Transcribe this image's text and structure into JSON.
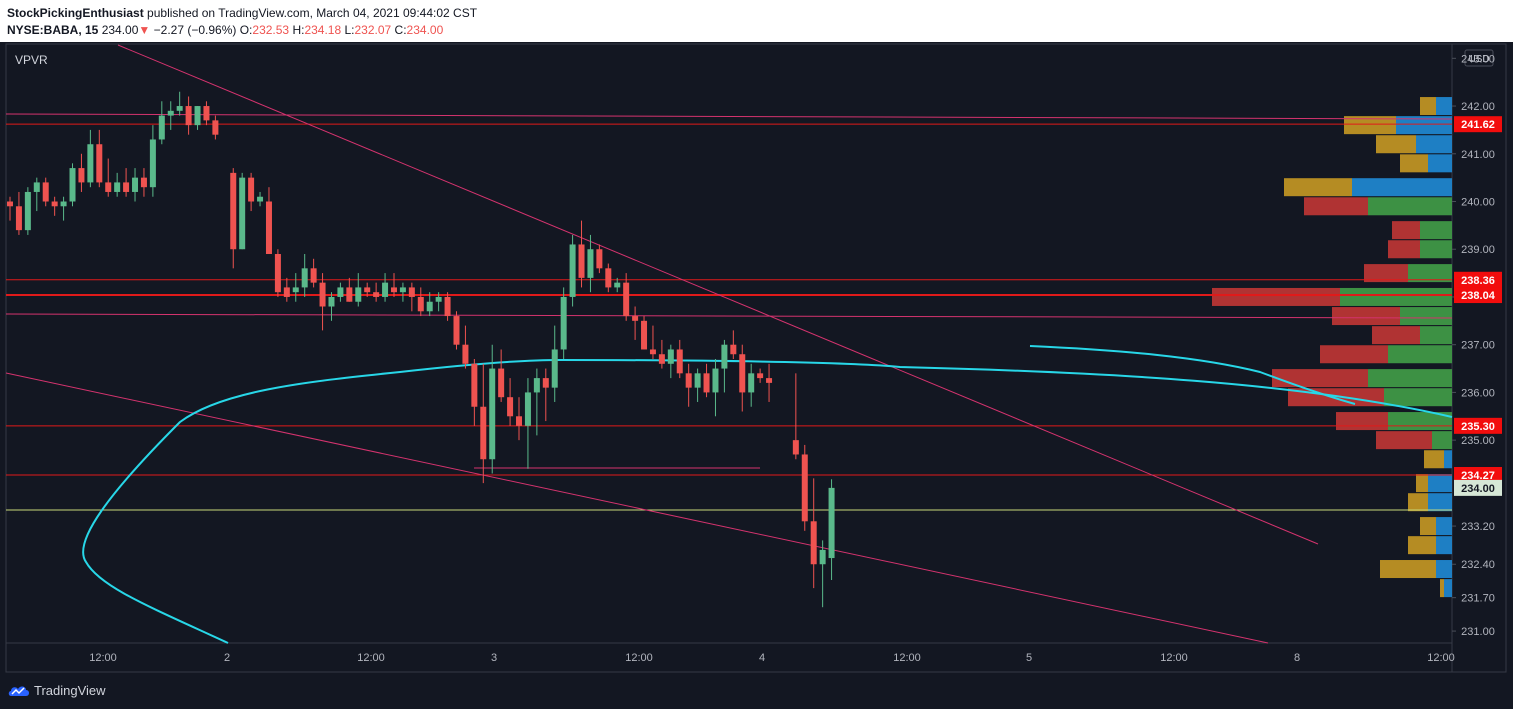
{
  "header": {
    "publisher": "StockPickingEnthusiast",
    "published_text": "published on TradingView.com, March 04, 2021 09:44:02 CST",
    "symbol": "NYSE:BABA, 15",
    "last": "234.00",
    "change_arrow": "▼",
    "change": "−2.27 (−0.96%)",
    "o_label": "O:",
    "o": "232.53",
    "h_label": "H:",
    "h": "234.18",
    "l_label": "L:",
    "l": "232.07",
    "c_label": "C:",
    "c": "234.00"
  },
  "indicator_label": "VPVR",
  "currency": "USD",
  "footer": {
    "brand": "TradingView"
  },
  "colors": {
    "background": "#131722",
    "up": "#5ab98b",
    "down": "#ef5350",
    "vwap": "#28d7e8",
    "trendline": "#d4336e",
    "level": "#e01a1a",
    "current_price_line": "#c8d97a",
    "vp_up": "#3d9144",
    "vp_down": "#b03333",
    "vp_va_up": "#1e7fc4",
    "vp_va_down": "#b58c23"
  },
  "chart_data": {
    "type": "candlestick",
    "symbol": "NYSE:BABA",
    "interval": "15",
    "ylim": [
      230.75,
      243.3
    ],
    "y_ticks": [
      "243.00",
      "242.00",
      "241.00",
      "240.00",
      "239.00",
      "238.00",
      "237.00",
      "236.00",
      "235.00",
      "233.20",
      "232.40",
      "231.70",
      "231.00"
    ],
    "x_ticks": [
      "12:00",
      "2",
      "12:00",
      "3",
      "12:00",
      "4",
      "12:00",
      "5",
      "12:00",
      "8",
      "12:00"
    ],
    "price_labels": [
      {
        "value": 241.62,
        "text": "241.62",
        "kind": "level"
      },
      {
        "value": 238.36,
        "text": "238.36",
        "kind": "level"
      },
      {
        "value": 238.04,
        "text": "238.04",
        "kind": "level"
      },
      {
        "value": 235.3,
        "text": "235.30",
        "kind": "level"
      },
      {
        "value": 234.27,
        "text": "234.27",
        "kind": "level"
      },
      {
        "value": 234.0,
        "text": "234.00",
        "kind": "last"
      }
    ],
    "horizontal_levels": [
      241.62,
      238.36,
      238.04,
      235.3,
      234.27
    ],
    "current_price": 234.0,
    "lines_description_values": {
      "upper_channel": [
        242.1,
        242.0
      ],
      "mid_channel": [
        237.58,
        237.55
      ]
    },
    "candles": [
      [
        240.0,
        240.1,
        239.6,
        239.9
      ],
      [
        239.9,
        240.2,
        239.3,
        239.4
      ],
      [
        239.4,
        240.3,
        239.3,
        240.2
      ],
      [
        240.2,
        240.5,
        239.8,
        240.4
      ],
      [
        240.4,
        240.5,
        239.9,
        240.0
      ],
      [
        240.0,
        240.1,
        239.7,
        239.9
      ],
      [
        239.9,
        240.1,
        239.6,
        240.0
      ],
      [
        240.0,
        240.8,
        239.9,
        240.7
      ],
      [
        240.7,
        241.0,
        240.2,
        240.4
      ],
      [
        240.4,
        241.5,
        240.3,
        241.2
      ],
      [
        241.2,
        241.5,
        240.3,
        240.4
      ],
      [
        240.4,
        240.9,
        240.1,
        240.2
      ],
      [
        240.2,
        240.6,
        240.1,
        240.4
      ],
      [
        240.4,
        240.7,
        240.1,
        240.2
      ],
      [
        240.2,
        240.7,
        240.0,
        240.5
      ],
      [
        240.5,
        240.7,
        240.1,
        240.3
      ],
      [
        240.3,
        241.6,
        240.1,
        241.3
      ],
      [
        241.3,
        242.1,
        241.2,
        241.8
      ],
      [
        241.8,
        242.1,
        241.5,
        241.9
      ],
      [
        241.9,
        242.3,
        241.8,
        242.0
      ],
      [
        242.0,
        242.2,
        241.4,
        241.6
      ],
      [
        241.6,
        242.0,
        241.5,
        242.0
      ],
      [
        242.0,
        242.1,
        241.6,
        241.7
      ],
      [
        241.7,
        241.8,
        241.3,
        241.4
      ],
      [
        240.6,
        240.7,
        238.6,
        239.0
      ],
      [
        239.0,
        240.6,
        239.0,
        240.5
      ],
      [
        240.5,
        240.6,
        239.8,
        240.0
      ],
      [
        240.0,
        240.2,
        239.9,
        240.1
      ],
      [
        240.0,
        240.3,
        238.9,
        238.9
      ],
      [
        238.9,
        239.0,
        238.0,
        238.1
      ],
      [
        238.2,
        238.4,
        237.9,
        238.0
      ],
      [
        238.1,
        238.5,
        237.9,
        238.2
      ],
      [
        238.2,
        238.9,
        238.0,
        238.6
      ],
      [
        238.6,
        238.8,
        238.2,
        238.3
      ],
      [
        238.3,
        238.5,
        237.3,
        237.8
      ],
      [
        237.8,
        238.1,
        237.5,
        238.0
      ],
      [
        238.0,
        238.3,
        237.9,
        238.2
      ],
      [
        238.2,
        238.4,
        237.9,
        237.9
      ],
      [
        237.9,
        238.5,
        237.8,
        238.2
      ],
      [
        238.2,
        238.3,
        238.0,
        238.1
      ],
      [
        238.1,
        238.3,
        237.9,
        238.0
      ],
      [
        238.0,
        238.5,
        237.9,
        238.3
      ],
      [
        238.2,
        238.5,
        238.0,
        238.1
      ],
      [
        238.1,
        238.3,
        237.9,
        238.2
      ],
      [
        238.2,
        238.3,
        237.7,
        238.0
      ],
      [
        238.0,
        238.2,
        237.6,
        237.7
      ],
      [
        237.7,
        238.1,
        237.6,
        237.9
      ],
      [
        237.9,
        238.1,
        237.7,
        238.0
      ],
      [
        238.0,
        238.1,
        237.5,
        237.6
      ],
      [
        237.6,
        237.7,
        236.9,
        237.0
      ],
      [
        237.0,
        237.4,
        236.5,
        236.6
      ],
      [
        236.6,
        236.7,
        235.3,
        235.7
      ],
      [
        235.7,
        236.6,
        234.1,
        234.6
      ],
      [
        234.6,
        237.0,
        234.3,
        236.5
      ],
      [
        236.5,
        236.9,
        235.8,
        235.9
      ],
      [
        235.9,
        236.3,
        235.3,
        235.5
      ],
      [
        235.5,
        235.9,
        235.0,
        235.3
      ],
      [
        235.3,
        236.3,
        234.4,
        236.0
      ],
      [
        236.0,
        236.5,
        235.1,
        236.3
      ],
      [
        236.3,
        236.5,
        235.4,
        236.1
      ],
      [
        236.1,
        237.4,
        235.8,
        236.9
      ],
      [
        236.9,
        238.2,
        236.7,
        238.0
      ],
      [
        238.0,
        239.3,
        237.8,
        239.1
      ],
      [
        239.1,
        239.6,
        238.2,
        238.4
      ],
      [
        238.4,
        239.3,
        238.1,
        239.0
      ],
      [
        239.0,
        239.1,
        238.5,
        238.6
      ],
      [
        238.6,
        238.7,
        238.1,
        238.2
      ],
      [
        238.2,
        238.4,
        238.1,
        238.3
      ],
      [
        238.3,
        238.5,
        237.5,
        237.6
      ],
      [
        237.6,
        237.8,
        237.1,
        237.5
      ],
      [
        237.5,
        237.6,
        236.9,
        236.9
      ],
      [
        236.9,
        237.4,
        236.7,
        236.8
      ],
      [
        236.8,
        237.1,
        236.5,
        236.6
      ],
      [
        236.6,
        237.0,
        236.3,
        236.9
      ],
      [
        236.9,
        237.1,
        236.3,
        236.4
      ],
      [
        236.4,
        236.6,
        235.7,
        236.1
      ],
      [
        236.1,
        236.5,
        235.8,
        236.4
      ],
      [
        236.4,
        236.6,
        235.9,
        236.0
      ],
      [
        236.0,
        236.7,
        235.5,
        236.5
      ],
      [
        236.5,
        237.1,
        236.0,
        237.0
      ],
      [
        237.0,
        237.3,
        236.7,
        236.8
      ],
      [
        236.8,
        237.0,
        235.6,
        236.0
      ],
      [
        236.0,
        236.6,
        235.7,
        236.4
      ],
      [
        236.4,
        236.5,
        236.2,
        236.3
      ],
      [
        236.3,
        236.6,
        235.8,
        236.2
      ],
      [
        235.0,
        236.4,
        234.6,
        234.7
      ],
      [
        234.7,
        234.9,
        233.1,
        233.3
      ],
      [
        233.3,
        234.2,
        231.9,
        232.4
      ],
      [
        232.4,
        232.9,
        231.5,
        232.7
      ],
      [
        232.53,
        234.18,
        232.07,
        234.0
      ]
    ],
    "candle_slots": [
      0,
      1,
      2,
      3,
      4,
      5,
      6,
      7,
      8,
      9,
      10,
      11,
      12,
      13,
      14,
      15,
      16,
      17,
      18,
      19,
      20,
      21,
      22,
      23,
      25,
      26,
      27,
      28,
      29,
      30,
      31,
      32,
      33,
      34,
      35,
      36,
      37,
      38,
      39,
      40,
      41,
      42,
      43,
      44,
      45,
      46,
      47,
      48,
      49,
      50,
      51,
      52,
      53,
      54,
      55,
      56,
      57,
      58,
      59,
      60,
      61,
      62,
      63,
      64,
      65,
      66,
      67,
      68,
      69,
      70,
      71,
      72,
      73,
      74,
      75,
      76,
      77,
      78,
      79,
      80,
      81,
      82,
      83,
      84,
      85,
      88,
      89,
      90,
      91,
      92
    ],
    "volume_profile": [
      {
        "price": 242.0,
        "up": 4,
        "down": 4,
        "value_area": true
      },
      {
        "price": 241.6,
        "up": 14,
        "down": 13,
        "value_area": true
      },
      {
        "price": 241.2,
        "up": 9,
        "down": 10,
        "value_area": true
      },
      {
        "price": 240.8,
        "up": 6,
        "down": 7,
        "value_area": true
      },
      {
        "price": 240.3,
        "up": 25,
        "down": 17,
        "value_area": true
      },
      {
        "price": 239.9,
        "up": 21,
        "down": 16,
        "value_area": false
      },
      {
        "price": 239.4,
        "up": 8,
        "down": 7,
        "value_area": false
      },
      {
        "price": 239.0,
        "up": 8,
        "down": 8,
        "value_area": false
      },
      {
        "price": 238.5,
        "up": 11,
        "down": 11,
        "value_area": false
      },
      {
        "price": 238.0,
        "up": 28,
        "down": 32,
        "value_area": false
      },
      {
        "price": 237.6,
        "up": 13,
        "down": 17,
        "value_area": false
      },
      {
        "price": 237.2,
        "up": 8,
        "down": 12,
        "value_area": false
      },
      {
        "price": 236.8,
        "up": 16,
        "down": 17,
        "value_area": false
      },
      {
        "price": 236.3,
        "up": 21,
        "down": 24,
        "value_area": false
      },
      {
        "price": 235.9,
        "up": 17,
        "down": 24,
        "value_area": false
      },
      {
        "price": 235.4,
        "up": 16,
        "down": 13,
        "value_area": false
      },
      {
        "price": 235.0,
        "up": 5,
        "down": 14,
        "value_area": false
      },
      {
        "price": 234.6,
        "up": 2,
        "down": 5,
        "value_area": true
      },
      {
        "price": 234.1,
        "up": 6,
        "down": 3,
        "value_area": true
      },
      {
        "price": 233.7,
        "up": 6,
        "down": 5,
        "value_area": true
      },
      {
        "price": 233.2,
        "up": 4,
        "down": 4,
        "value_area": true
      },
      {
        "price": 232.8,
        "up": 4,
        "down": 7,
        "value_area": true
      },
      {
        "price": 232.3,
        "up": 4,
        "down": 14,
        "value_area": true
      },
      {
        "price": 231.9,
        "up": 2,
        "down": 1,
        "value_area": true
      }
    ]
  }
}
